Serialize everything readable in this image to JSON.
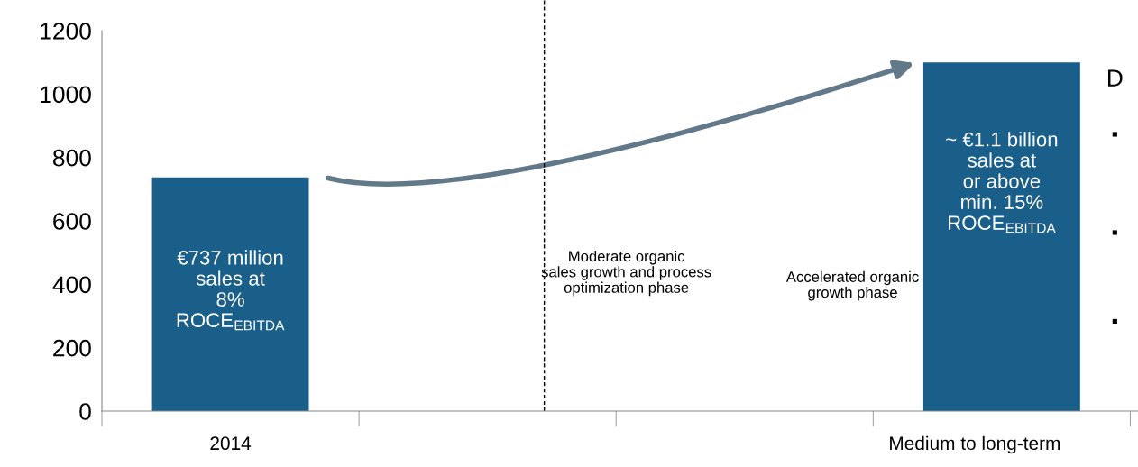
{
  "chart_data": {
    "type": "bar",
    "categories": [
      "2014",
      null,
      null,
      "Medium to long-term"
    ],
    "values": [
      737,
      null,
      null,
      1100
    ],
    "color": "#1a5f8a",
    "ylim": [
      0,
      1200
    ],
    "yticks": [
      0,
      200,
      400,
      600,
      800,
      1000,
      1200
    ],
    "grid": false,
    "legend": false,
    "annotations": [
      "€737 million\nsales at\n8%\nROCE$_{EBITDA}$",
      "~ €1.1 billion\nsales at\nor above\nmin. 15%\nROCE$_{EBITDA}$",
      "Moderate organic\nsales growth and process\noptimization phase",
      "Accelerated organic\ngrowth phase",
      "D",
      "▪",
      "▪",
      "▪"
    ]
  }
}
